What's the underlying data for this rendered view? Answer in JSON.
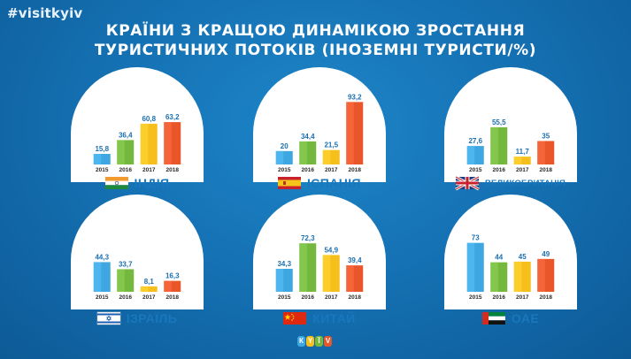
{
  "hashtag": "#visitkyiv",
  "title_lines": [
    "КРАЇНИ З КРАЩОЮ ДИНАМІКОЮ ЗРОСТАННЯ",
    "ТУРИСТИЧНИХ ПОТОКІВ (ІНОЗЕМНІ ТУРИСТИ/%)"
  ],
  "logo_letters": [
    "К",
    "Y",
    "Ї",
    "V"
  ],
  "colors": {
    "bar_2015": "#3ea6e0",
    "bar_2016": "#74b83d",
    "bar_2017": "#f6bf1c",
    "bar_2018": "#e8562a",
    "value_text": "#1b6fb0",
    "year_text": "#2a2a2a"
  },
  "chart_data": [
    {
      "type": "bar",
      "country": "ІНДІЯ",
      "flag": "india-flag-icon",
      "categories": [
        "2015",
        "2016",
        "2017",
        "2018"
      ],
      "values": [
        15.8,
        36.4,
        60.8,
        63.2
      ],
      "value_labels": [
        "15,8",
        "36,4",
        "60,8",
        "63,2"
      ]
    },
    {
      "type": "bar",
      "country": "ІСПАНІЯ",
      "flag": "spain-flag-icon",
      "categories": [
        "2015",
        "2016",
        "2017",
        "2018"
      ],
      "values": [
        20,
        34.4,
        21.5,
        93.2
      ],
      "value_labels": [
        "20",
        "34,4",
        "21,5",
        "93,2"
      ]
    },
    {
      "type": "bar",
      "country": "ВЕЛИКОБРИТАНІЯ",
      "flag": "uk-flag-icon",
      "categories": [
        "2015",
        "2016",
        "2017",
        "2018"
      ],
      "values": [
        27.6,
        55.5,
        11.7,
        35
      ],
      "value_labels": [
        "27,6",
        "55,5",
        "11,7",
        "35"
      ]
    },
    {
      "type": "bar",
      "country": "ІЗРАЇЛЬ",
      "flag": "israel-flag-icon",
      "categories": [
        "2015",
        "2016",
        "2017",
        "2018"
      ],
      "values": [
        44.3,
        33.7,
        8.1,
        16.3
      ],
      "value_labels": [
        "44,3",
        "33,7",
        "8,1",
        "16,3"
      ]
    },
    {
      "type": "bar",
      "country": "КИТАЙ",
      "flag": "china-flag-icon",
      "categories": [
        "2015",
        "2016",
        "2017",
        "2018"
      ],
      "values": [
        34.3,
        72.3,
        54.9,
        39.4
      ],
      "value_labels": [
        "34,3",
        "72,3",
        "54,9",
        "39,4"
      ]
    },
    {
      "type": "bar",
      "country": "ОАЕ",
      "flag": "uae-flag-icon",
      "categories": [
        "2015",
        "2016",
        "2017",
        "2018"
      ],
      "values": [
        73,
        44,
        45,
        49
      ],
      "value_labels": [
        "73",
        "44",
        "45",
        "49"
      ]
    }
  ]
}
